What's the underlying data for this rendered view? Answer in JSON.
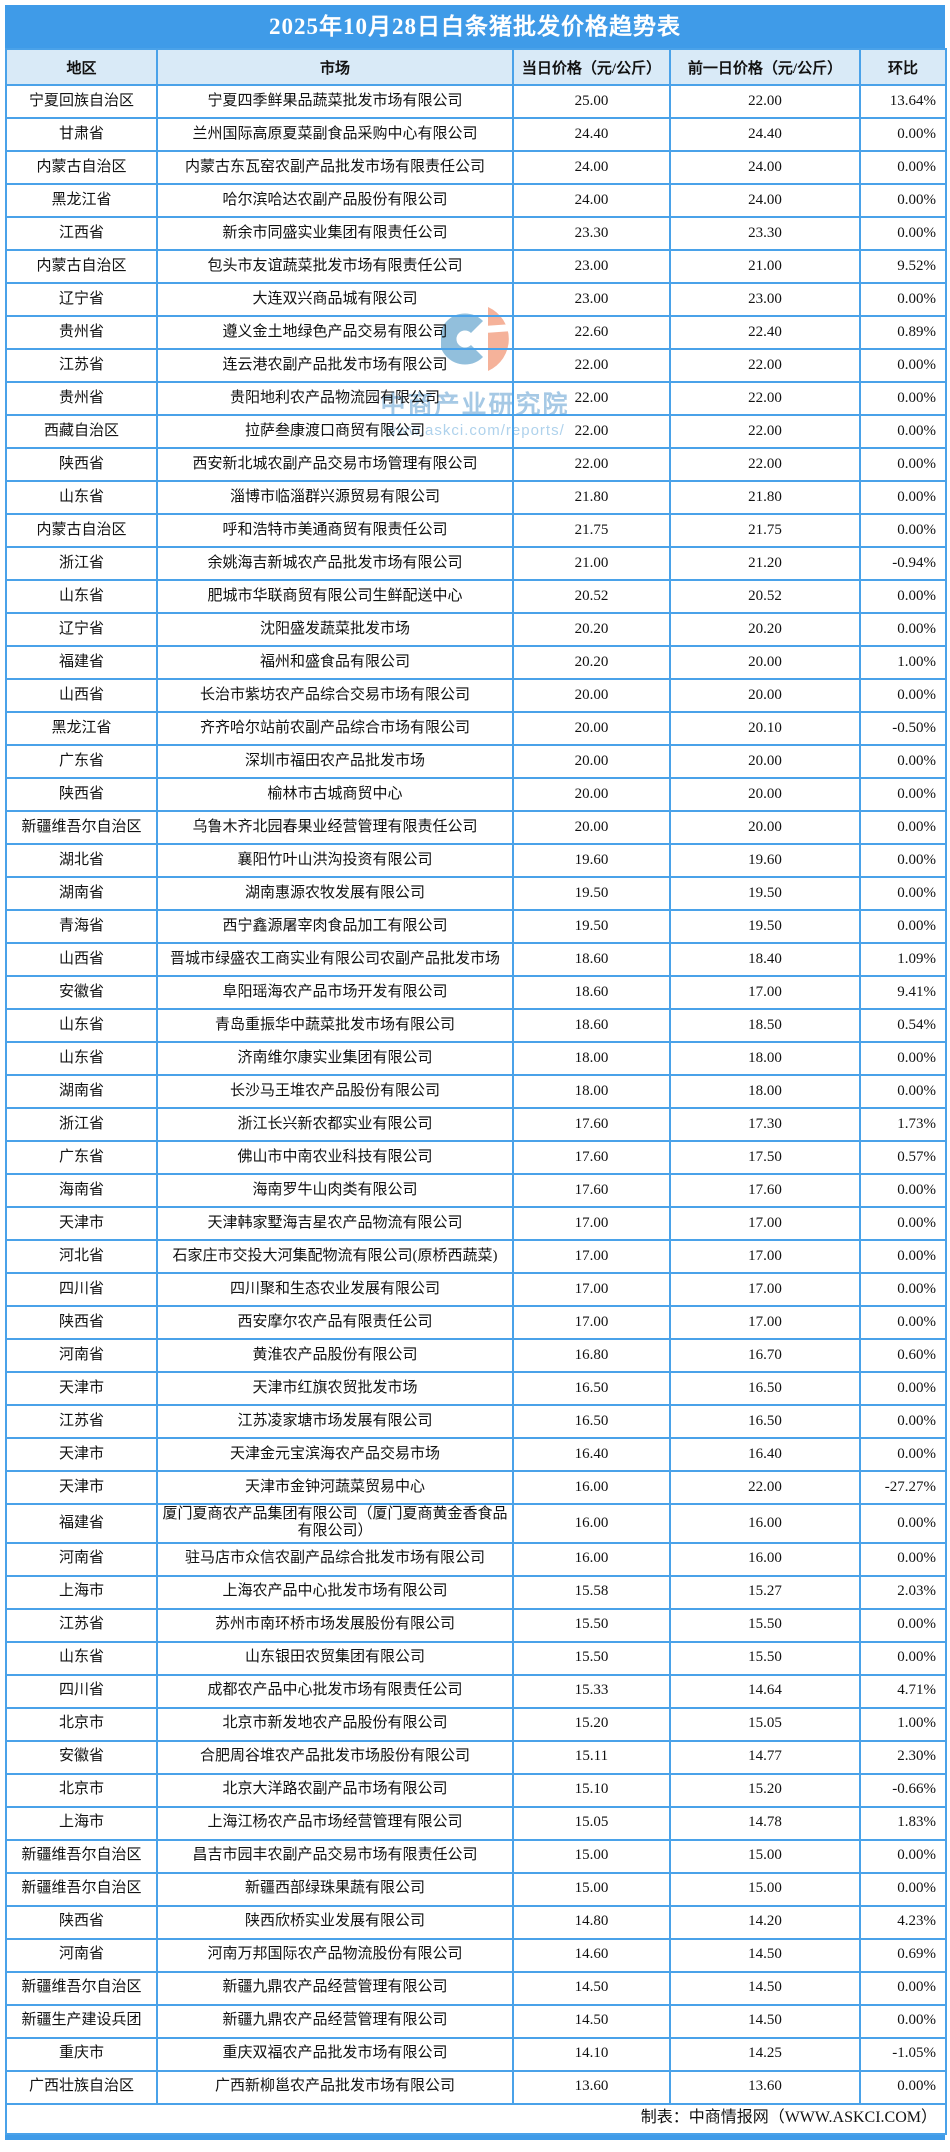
{
  "title": "2025年10月28日白条猪批发价格趋势表",
  "watermark": {
    "org": "中商产业研究院",
    "url": "www.askci.com/reports/"
  },
  "footer": {
    "credit": "制表：中商情报网（WWW.ASKCI.COM）"
  },
  "colors": {
    "band_blue": "#3F9BE8",
    "border_blue": "#4AA2E9",
    "header_bg": "#D9EAF7",
    "logo_blue": "#92BFDC",
    "logo_orange": "#F5B29A",
    "watermark_text_blue": "#A6C9E5"
  },
  "table": {
    "headers": [
      "地区",
      "市场",
      "当日价格（元/公斤）",
      "前一日价格（元/公斤）",
      "环比"
    ],
    "rows": [
      [
        "宁夏回族自治区",
        "宁夏四季鲜果品蔬菜批发市场有限公司",
        "25.00",
        "22.00",
        "13.64%"
      ],
      [
        "甘肃省",
        "兰州国际高原夏菜副食品采购中心有限公司",
        "24.40",
        "24.40",
        "0.00%"
      ],
      [
        "内蒙古自治区",
        "内蒙古东瓦窑农副产品批发市场有限责任公司",
        "24.00",
        "24.00",
        "0.00%"
      ],
      [
        "黑龙江省",
        "哈尔滨哈达农副产品股份有限公司",
        "24.00",
        "24.00",
        "0.00%"
      ],
      [
        "江西省",
        "新余市同盛实业集团有限责任公司",
        "23.30",
        "23.30",
        "0.00%"
      ],
      [
        "内蒙古自治区",
        "包头市友谊蔬菜批发市场有限责任公司",
        "23.00",
        "21.00",
        "9.52%"
      ],
      [
        "辽宁省",
        "大连双兴商品城有限公司",
        "23.00",
        "23.00",
        "0.00%"
      ],
      [
        "贵州省",
        "遵义金土地绿色产品交易有限公司",
        "22.60",
        "22.40",
        "0.89%"
      ],
      [
        "江苏省",
        "连云港农副产品批发市场有限公司",
        "22.00",
        "22.00",
        "0.00%"
      ],
      [
        "贵州省",
        "贵阳地利农产品物流园有限公司",
        "22.00",
        "22.00",
        "0.00%"
      ],
      [
        "西藏自治区",
        "拉萨叁康渡口商贸有限公司",
        "22.00",
        "22.00",
        "0.00%"
      ],
      [
        "陕西省",
        "西安新北城农副产品交易市场管理有限公司",
        "22.00",
        "22.00",
        "0.00%"
      ],
      [
        "山东省",
        "淄博市临淄群兴源贸易有限公司",
        "21.80",
        "21.80",
        "0.00%"
      ],
      [
        "内蒙古自治区",
        "呼和浩特市美通商贸有限责任公司",
        "21.75",
        "21.75",
        "0.00%"
      ],
      [
        "浙江省",
        "余姚海吉新城农产品批发市场有限公司",
        "21.00",
        "21.20",
        "-0.94%"
      ],
      [
        "山东省",
        "肥城市华联商贸有限公司生鲜配送中心",
        "20.52",
        "20.52",
        "0.00%"
      ],
      [
        "辽宁省",
        "沈阳盛发蔬菜批发市场",
        "20.20",
        "20.20",
        "0.00%"
      ],
      [
        "福建省",
        "福州和盛食品有限公司",
        "20.20",
        "20.00",
        "1.00%"
      ],
      [
        "山西省",
        "长治市紫坊农产品综合交易市场有限公司",
        "20.00",
        "20.00",
        "0.00%"
      ],
      [
        "黑龙江省",
        "齐齐哈尔站前农副产品综合市场有限公司",
        "20.00",
        "20.10",
        "-0.50%"
      ],
      [
        "广东省",
        "深圳市福田农产品批发市场",
        "20.00",
        "20.00",
        "0.00%"
      ],
      [
        "陕西省",
        "榆林市古城商贸中心",
        "20.00",
        "20.00",
        "0.00%"
      ],
      [
        "新疆维吾尔自治区",
        "乌鲁木齐北园春果业经营管理有限责任公司",
        "20.00",
        "20.00",
        "0.00%"
      ],
      [
        "湖北省",
        "襄阳竹叶山洪沟投资有限公司",
        "19.60",
        "19.60",
        "0.00%"
      ],
      [
        "湖南省",
        "湖南惠源农牧发展有限公司",
        "19.50",
        "19.50",
        "0.00%"
      ],
      [
        "青海省",
        "西宁鑫源屠宰肉食品加工有限公司",
        "19.50",
        "19.50",
        "0.00%"
      ],
      [
        "山西省",
        "晋城市绿盛农工商实业有限公司农副产品批发市场",
        "18.60",
        "18.40",
        "1.09%"
      ],
      [
        "安徽省",
        "阜阳瑶海农产品市场开发有限公司",
        "18.60",
        "17.00",
        "9.41%"
      ],
      [
        "山东省",
        "青岛重振华中蔬菜批发市场有限公司",
        "18.60",
        "18.50",
        "0.54%"
      ],
      [
        "山东省",
        "济南维尔康实业集团有限公司",
        "18.00",
        "18.00",
        "0.00%"
      ],
      [
        "湖南省",
        "长沙马王堆农产品股份有限公司",
        "18.00",
        "18.00",
        "0.00%"
      ],
      [
        "浙江省",
        "浙江长兴新农都实业有限公司",
        "17.60",
        "17.30",
        "1.73%"
      ],
      [
        "广东省",
        "佛山市中南农业科技有限公司",
        "17.60",
        "17.50",
        "0.57%"
      ],
      [
        "海南省",
        "海南罗牛山肉类有限公司",
        "17.60",
        "17.60",
        "0.00%"
      ],
      [
        "天津市",
        "天津韩家墅海吉星农产品物流有限公司",
        "17.00",
        "17.00",
        "0.00%"
      ],
      [
        "河北省",
        "石家庄市交投大河集配物流有限公司(原桥西蔬菜)",
        "17.00",
        "17.00",
        "0.00%"
      ],
      [
        "四川省",
        "四川聚和生态农业发展有限公司",
        "17.00",
        "17.00",
        "0.00%"
      ],
      [
        "陕西省",
        "西安摩尔农产品有限责任公司",
        "17.00",
        "17.00",
        "0.00%"
      ],
      [
        "河南省",
        "黄淮农产品股份有限公司",
        "16.80",
        "16.70",
        "0.60%"
      ],
      [
        "天津市",
        "天津市红旗农贸批发市场",
        "16.50",
        "16.50",
        "0.00%"
      ],
      [
        "江苏省",
        "江苏凌家塘市场发展有限公司",
        "16.50",
        "16.50",
        "0.00%"
      ],
      [
        "天津市",
        "天津金元宝滨海农产品交易市场",
        "16.40",
        "16.40",
        "0.00%"
      ],
      [
        "天津市",
        "天津市金钟河蔬菜贸易中心",
        "16.00",
        "22.00",
        "-27.27%"
      ],
      [
        "福建省",
        "厦门夏商农产品集团有限公司（厦门夏商黄金香食品有限公司）",
        "16.00",
        "16.00",
        "0.00%"
      ],
      [
        "河南省",
        "驻马店市众信农副产品综合批发市场有限公司",
        "16.00",
        "16.00",
        "0.00%"
      ],
      [
        "上海市",
        "上海农产品中心批发市场有限公司",
        "15.58",
        "15.27",
        "2.03%"
      ],
      [
        "江苏省",
        "苏州市南环桥市场发展股份有限公司",
        "15.50",
        "15.50",
        "0.00%"
      ],
      [
        "山东省",
        "山东银田农贸集团有限公司",
        "15.50",
        "15.50",
        "0.00%"
      ],
      [
        "四川省",
        "成都农产品中心批发市场有限责任公司",
        "15.33",
        "14.64",
        "4.71%"
      ],
      [
        "北京市",
        "北京市新发地农产品股份有限公司",
        "15.20",
        "15.05",
        "1.00%"
      ],
      [
        "安徽省",
        "合肥周谷堆农产品批发市场股份有限公司",
        "15.11",
        "14.77",
        "2.30%"
      ],
      [
        "北京市",
        "北京大洋路农副产品市场有限公司",
        "15.10",
        "15.20",
        "-0.66%"
      ],
      [
        "上海市",
        "上海江杨农产品市场经营管理有限公司",
        "15.05",
        "14.78",
        "1.83%"
      ],
      [
        "新疆维吾尔自治区",
        "昌吉市园丰农副产品交易市场有限责任公司",
        "15.00",
        "15.00",
        "0.00%"
      ],
      [
        "新疆维吾尔自治区",
        "新疆西部绿珠果蔬有限公司",
        "15.00",
        "15.00",
        "0.00%"
      ],
      [
        "陕西省",
        "陕西欣桥实业发展有限公司",
        "14.80",
        "14.20",
        "4.23%"
      ],
      [
        "河南省",
        "河南万邦国际农产品物流股份有限公司",
        "14.60",
        "14.50",
        "0.69%"
      ],
      [
        "新疆维吾尔自治区",
        "新疆九鼎农产品经营管理有限公司",
        "14.50",
        "14.50",
        "0.00%"
      ],
      [
        "新疆生产建设兵团",
        "新疆九鼎农产品经营管理有限公司",
        "14.50",
        "14.50",
        "0.00%"
      ],
      [
        "重庆市",
        "重庆双福农产品批发市场有限公司",
        "14.10",
        "14.25",
        "-1.05%"
      ],
      [
        "广西壮族自治区",
        "广西新柳邕农产品批发市场有限公司",
        "13.60",
        "13.60",
        "0.00%"
      ]
    ]
  }
}
